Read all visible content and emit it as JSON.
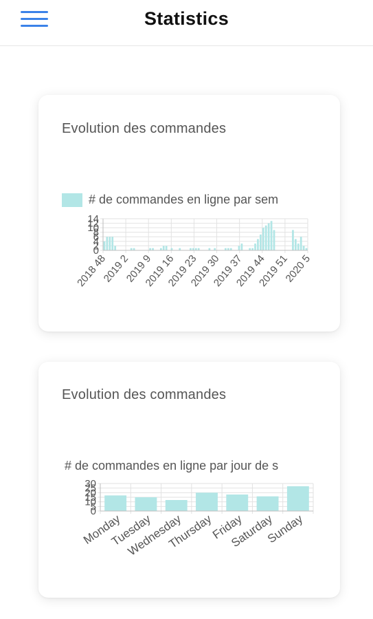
{
  "header": {
    "title": "Statistics",
    "menu_icon": "hamburger-menu-icon",
    "accent_color": "#3b82e8"
  },
  "cards": [
    {
      "title": "Evolution des commandes",
      "chart_data": {
        "type": "bar",
        "legend": "# de commandes en ligne par sem",
        "color": "#b2e6e6",
        "ylim": [
          0,
          14
        ],
        "yticks": [
          0,
          2,
          4,
          6,
          8,
          10,
          12,
          14
        ],
        "x_tick_labels": [
          "2018 48",
          "2019 2",
          "2019 9",
          "2019 16",
          "2019 23",
          "2019 30",
          "2019 37",
          "2019 44",
          "2019 51",
          "2020 5"
        ],
        "values": [
          4,
          6,
          6,
          6,
          2,
          0,
          0,
          0,
          0,
          0,
          1,
          1,
          0,
          0,
          0,
          0,
          0,
          1,
          1,
          0,
          0,
          1,
          2,
          2,
          0,
          1,
          0,
          0,
          1,
          0,
          0,
          0,
          1,
          1,
          1,
          1,
          0,
          0,
          0,
          1,
          0,
          1,
          0,
          0,
          0,
          1,
          1,
          1,
          0,
          0,
          2,
          3,
          0,
          0,
          1,
          1,
          3,
          5,
          7,
          10,
          11,
          12,
          13,
          9,
          0,
          0,
          0,
          0,
          0,
          0,
          9,
          5,
          3,
          6,
          2,
          1
        ]
      }
    },
    {
      "title": "Evolution des commandes",
      "chart_data": {
        "type": "bar",
        "legend": "# de commandes en ligne par jour de s",
        "color": "#b2e6e6",
        "ylim": [
          0,
          30
        ],
        "yticks": [
          0,
          5,
          10,
          15,
          20,
          25,
          30
        ],
        "categories": [
          "Monday",
          "Tuesday",
          "Wednesday",
          "Thursday",
          "Friday",
          "Saturday",
          "Sunday"
        ],
        "values": [
          17,
          15,
          12,
          20,
          18,
          16,
          27
        ]
      }
    }
  ]
}
